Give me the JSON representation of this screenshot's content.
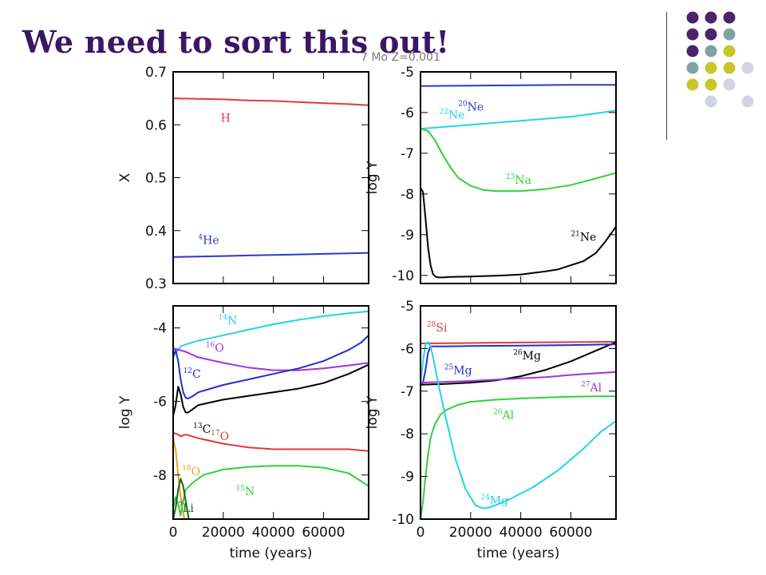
{
  "slide": {
    "title": "We need to sort this out!",
    "top_note": "7 Mo Z=0.001",
    "decoration_colors": [
      "#4b2469",
      "#7ea3a3",
      "#c9c52a",
      "#d3d3e6"
    ]
  },
  "chart_data": [
    {
      "type": "line",
      "panel": "top-left",
      "xlabel": "",
      "ylabel": "X",
      "xlim": [
        0,
        78000
      ],
      "ylim": [
        0.3,
        0.7
      ],
      "yticks": [
        0.3,
        0.4,
        0.5,
        0.6,
        0.7
      ],
      "xticks": [
        0,
        20000,
        40000,
        60000
      ],
      "x_ticklabels": [],
      "series": [
        {
          "name": "H",
          "color": "#e03a3a",
          "label_x": 19000,
          "label_y": 0.606,
          "label_sup": "",
          "label_base": "H",
          "x": [
            0,
            10000,
            20000,
            30000,
            40000,
            50000,
            60000,
            70000,
            78000
          ],
          "y": [
            0.65,
            0.649,
            0.648,
            0.646,
            0.645,
            0.643,
            0.641,
            0.639,
            0.637
          ]
        },
        {
          "name": "4He",
          "color": "#2a3ac9",
          "label_x": 10000,
          "label_y": 0.375,
          "label_sup": "4",
          "label_base": "He",
          "x": [
            0,
            10000,
            20000,
            30000,
            40000,
            50000,
            60000,
            70000,
            78000
          ],
          "y": [
            0.35,
            0.351,
            0.352,
            0.353,
            0.354,
            0.355,
            0.356,
            0.357,
            0.358
          ]
        }
      ]
    },
    {
      "type": "line",
      "panel": "top-right",
      "xlabel": "",
      "ylabel": "log Y",
      "xlim": [
        0,
        78000
      ],
      "ylim": [
        -10.2,
        -5
      ],
      "yticks": [
        -10,
        -9,
        -8,
        -7,
        -6,
        -5
      ],
      "xticks": [
        0,
        20000,
        40000,
        60000
      ],
      "x_ticklabels": [],
      "series": [
        {
          "name": "20Ne",
          "color": "#2a3ac9",
          "label_x": 15000,
          "label_y": -5.95,
          "label_sup": "20",
          "label_base": "Ne",
          "x": [
            0,
            20000,
            40000,
            60000,
            78000
          ],
          "y": [
            -5.35,
            -5.34,
            -5.33,
            -5.32,
            -5.32
          ]
        },
        {
          "name": "22Ne",
          "color": "#24d3e8",
          "label_x": 7500,
          "label_y": -6.15,
          "label_sup": "22",
          "label_base": "Ne",
          "x": [
            0,
            10000,
            20000,
            30000,
            40000,
            50000,
            60000,
            70000,
            78000
          ],
          "y": [
            -6.4,
            -6.35,
            -6.3,
            -6.25,
            -6.2,
            -6.15,
            -6.1,
            -6.02,
            -5.95
          ]
        },
        {
          "name": "23Na",
          "color": "#2fd23a",
          "label_x": 34000,
          "label_y": -7.75,
          "label_sup": "23",
          "label_base": "Na",
          "x": [
            0,
            3000,
            6000,
            9000,
            12000,
            15000,
            20000,
            25000,
            30000,
            40000,
            50000,
            60000,
            70000,
            78000
          ],
          "y": [
            -6.4,
            -6.45,
            -6.7,
            -7.05,
            -7.35,
            -7.6,
            -7.8,
            -7.9,
            -7.93,
            -7.93,
            -7.88,
            -7.78,
            -7.62,
            -7.48
          ]
        },
        {
          "name": "21Ne",
          "color": "#000000",
          "label_x": 60000,
          "label_y": -9.15,
          "label_sup": "21",
          "label_base": "Ne",
          "x": [
            0,
            1000,
            2000,
            3000,
            4000,
            5000,
            6000,
            7000,
            9000,
            12000,
            20000,
            30000,
            40000,
            50000,
            55000,
            60000,
            65000,
            70000,
            74000,
            78000
          ],
          "y": [
            -7.85,
            -7.95,
            -8.6,
            -9.3,
            -9.75,
            -9.97,
            -10.03,
            -10.05,
            -10.05,
            -10.04,
            -10.03,
            -10.01,
            -9.98,
            -9.9,
            -9.85,
            -9.75,
            -9.65,
            -9.45,
            -9.15,
            -8.8
          ]
        }
      ]
    },
    {
      "type": "line",
      "panel": "bottom-left",
      "xlabel": "time (years)",
      "ylabel": "log Y",
      "xlim": [
        0,
        78000
      ],
      "ylim": [
        -9.2,
        -3.4
      ],
      "yticks": [
        -8,
        -6,
        -4
      ],
      "xticks": [
        0,
        20000,
        40000,
        60000
      ],
      "x_ticklabels": [
        "0",
        "20000",
        "40000",
        "60000"
      ],
      "series": [
        {
          "name": "14N",
          "color": "#24d3e8",
          "label_x": 18000,
          "label_y": -3.9,
          "label_sup": "14",
          "label_base": "N",
          "x": [
            0,
            1000,
            2000,
            3000,
            5000,
            10000,
            20000,
            30000,
            40000,
            50000,
            60000,
            70000,
            78000
          ],
          "y": [
            -4.75,
            -4.7,
            -4.6,
            -4.5,
            -4.45,
            -4.35,
            -4.2,
            -4.05,
            -3.9,
            -3.78,
            -3.68,
            -3.6,
            -3.55
          ]
        },
        {
          "name": "16O",
          "color": "#a035d4",
          "label_x": 13000,
          "label_y": -4.65,
          "label_sup": "16",
          "label_base": "O",
          "x": [
            0,
            5000,
            10000,
            20000,
            30000,
            40000,
            50000,
            60000,
            70000,
            78000
          ],
          "y": [
            -4.55,
            -4.65,
            -4.8,
            -4.95,
            -5.08,
            -5.15,
            -5.15,
            -5.1,
            -5.02,
            -4.95
          ]
        },
        {
          "name": "12C",
          "color": "#2030d0",
          "label_x": 4000,
          "label_y": -5.35,
          "label_sup": "12",
          "label_base": "C",
          "x": [
            0,
            1000,
            2000,
            3000,
            4000,
            5000,
            6000,
            8000,
            10000,
            20000,
            30000,
            40000,
            50000,
            60000,
            70000,
            75000,
            78000
          ],
          "y": [
            -4.8,
            -4.6,
            -4.9,
            -5.4,
            -5.75,
            -5.9,
            -5.92,
            -5.85,
            -5.75,
            -5.55,
            -5.4,
            -5.25,
            -5.1,
            -4.9,
            -4.6,
            -4.4,
            -4.2
          ]
        },
        {
          "name": "13C",
          "color": "#000000",
          "label_x": 8000,
          "label_y": -6.85,
          "label_sup": "13",
          "label_base": "C",
          "x": [
            0,
            1000,
            2000,
            3000,
            4000,
            5000,
            6000,
            8000,
            10000,
            20000,
            30000,
            40000,
            50000,
            60000,
            70000,
            78000
          ],
          "y": [
            -6.4,
            -6.1,
            -5.6,
            -5.8,
            -6.15,
            -6.3,
            -6.3,
            -6.2,
            -6.1,
            -5.95,
            -5.85,
            -5.75,
            -5.65,
            -5.5,
            -5.25,
            -5.0
          ]
        },
        {
          "name": "17O",
          "color": "#e03a3a",
          "label_x": 15000,
          "label_y": -7.05,
          "label_sup": "17",
          "label_base": "O",
          "x": [
            0,
            2000,
            3000,
            5000,
            10000,
            20000,
            30000,
            40000,
            50000,
            60000,
            70000,
            78000
          ],
          "y": [
            -6.85,
            -6.9,
            -6.95,
            -6.9,
            -7.0,
            -7.15,
            -7.25,
            -7.3,
            -7.3,
            -7.3,
            -7.3,
            -7.35
          ]
        },
        {
          "name": "18O",
          "color": "#f0a020",
          "label_x": 3500,
          "label_y": -8.0,
          "label_sup": "18",
          "label_base": "O",
          "x": [
            0,
            1000,
            2000,
            3000,
            4000,
            5000,
            6000,
            7000
          ],
          "y": [
            -7.0,
            -7.3,
            -8.0,
            -8.6,
            -9.0,
            -9.5,
            -9.9,
            -10.3
          ]
        },
        {
          "name": "15N",
          "color": "#2fd23a",
          "label_x": 25000,
          "label_y": -8.55,
          "label_sup": "15",
          "label_base": "N",
          "x": [
            0,
            1000,
            2000,
            3000,
            4000,
            5000,
            8000,
            12000,
            20000,
            30000,
            40000,
            50000,
            60000,
            70000,
            78000
          ],
          "y": [
            -8.9,
            -8.6,
            -8.8,
            -9.1,
            -8.7,
            -8.4,
            -8.2,
            -8.0,
            -7.85,
            -7.78,
            -7.75,
            -7.75,
            -7.8,
            -7.95,
            -8.3
          ]
        },
        {
          "name": "7Li",
          "color": "#1a6a1a",
          "label_x": 2000,
          "label_y": -9.0,
          "label_sup": "7",
          "label_base": "Li",
          "x": [
            0,
            1000,
            2000,
            3000,
            4000,
            5000,
            6000,
            7000,
            8000
          ],
          "y": [
            -9.2,
            -8.9,
            -8.4,
            -8.1,
            -8.3,
            -8.7,
            -9.1,
            -9.5,
            -10.0
          ]
        }
      ]
    },
    {
      "type": "line",
      "panel": "bottom-right",
      "xlabel": "time (years)",
      "ylabel": "log Y",
      "xlim": [
        0,
        78000
      ],
      "ylim": [
        -10,
        -5
      ],
      "yticks": [
        -10,
        -9,
        -8,
        -7,
        -6,
        -5
      ],
      "xticks": [
        0,
        20000,
        40000,
        60000
      ],
      "x_ticklabels": [
        "0",
        "20000",
        "40000",
        "60000"
      ],
      "series": [
        {
          "name": "28Si",
          "color": "#e03a3a",
          "label_x": 2500,
          "label_y": -5.6,
          "label_sup": "28",
          "label_base": "Si",
          "x": [
            0,
            20000,
            40000,
            60000,
            78000
          ],
          "y": [
            -5.88,
            -5.87,
            -5.86,
            -5.85,
            -5.84
          ]
        },
        {
          "name": "26Mg",
          "color": "#000000",
          "label_x": 37000,
          "label_y": -6.25,
          "label_sup": "26",
          "label_base": "Mg",
          "x": [
            0,
            10000,
            20000,
            30000,
            40000,
            50000,
            60000,
            70000,
            78000
          ],
          "y": [
            -6.85,
            -6.83,
            -6.8,
            -6.75,
            -6.65,
            -6.5,
            -6.3,
            -6.05,
            -5.85
          ]
        },
        {
          "name": "25Mg",
          "color": "#2030d0",
          "label_x": 9500,
          "label_y": -6.6,
          "label_sup": "25",
          "label_base": "Mg",
          "x": [
            0,
            1000,
            2000,
            3000,
            4000,
            5000,
            10000,
            20000,
            40000,
            60000,
            78000
          ],
          "y": [
            -6.85,
            -6.8,
            -6.5,
            -6.1,
            -5.95,
            -5.95,
            -5.95,
            -5.94,
            -5.93,
            -5.92,
            -5.9
          ]
        },
        {
          "name": "27Al",
          "color": "#a035d4",
          "label_x": 64000,
          "label_y": -7.0,
          "label_sup": "27",
          "label_base": "Al",
          "x": [
            0,
            10000,
            20000,
            30000,
            40000,
            50000,
            60000,
            70000,
            78000
          ],
          "y": [
            -6.8,
            -6.78,
            -6.76,
            -6.73,
            -6.7,
            -6.67,
            -6.62,
            -6.58,
            -6.55
          ]
        },
        {
          "name": "26Al",
          "color": "#2fd23a",
          "label_x": 29000,
          "label_y": -7.65,
          "label_sup": "26",
          "label_base": "Al",
          "x": [
            0,
            1000,
            2000,
            3000,
            4000,
            5000,
            6000,
            8000,
            10000,
            15000,
            20000,
            30000,
            40000,
            50000,
            60000,
            70000,
            78000
          ],
          "y": [
            -10.0,
            -9.6,
            -9.0,
            -8.5,
            -8.1,
            -7.9,
            -7.75,
            -7.55,
            -7.45,
            -7.32,
            -7.25,
            -7.2,
            -7.17,
            -7.15,
            -7.13,
            -7.12,
            -7.12
          ]
        },
        {
          "name": "24Mg",
          "color": "#24d3e8",
          "label_x": 24000,
          "label_y": -9.65,
          "label_sup": "24",
          "label_base": "Mg",
          "x": [
            0,
            1000,
            2000,
            3000,
            4000,
            5000,
            7000,
            10000,
            14000,
            18000,
            22000,
            25000,
            28000,
            35000,
            45000,
            55000,
            65000,
            72000,
            78000
          ],
          "y": [
            -6.8,
            -6.3,
            -5.9,
            -5.85,
            -5.95,
            -6.2,
            -6.8,
            -7.6,
            -8.6,
            -9.3,
            -9.68,
            -9.75,
            -9.72,
            -9.55,
            -9.25,
            -8.85,
            -8.35,
            -7.95,
            -7.7
          ]
        }
      ]
    }
  ]
}
